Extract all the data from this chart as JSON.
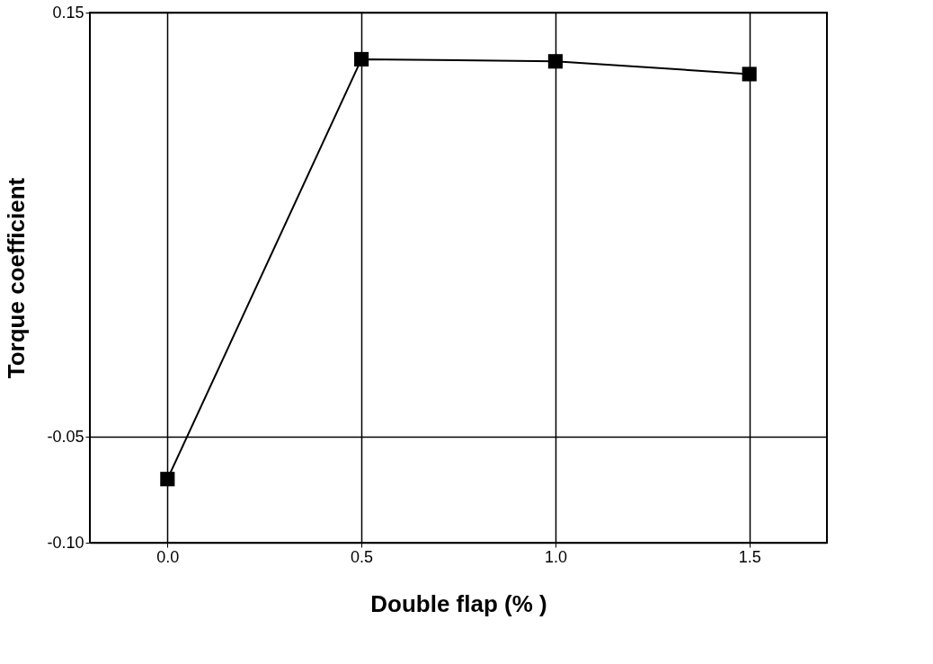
{
  "chart_data": {
    "type": "line",
    "xlabel": "Double flap (% )",
    "ylabel": "Torque coefficient",
    "x": [
      0.0,
      0.5,
      1.0,
      1.5
    ],
    "series": [
      {
        "color": "#000000",
        "values": [
          -0.07,
          0.128,
          0.127,
          0.121
        ]
      }
    ],
    "xlim": [
      -0.2,
      1.7
    ],
    "xticks": [
      {
        "value": 0,
        "label": "0.0"
      },
      0.5,
      {
        "value": 1,
        "label": "1.0"
      },
      1.5
    ],
    "ylim": [
      -0.1,
      0.15
    ],
    "yticks": [
      {
        "value": -0.1,
        "label": "-0.10"
      },
      -0.05,
      0.15
    ],
    "grid": true,
    "marker": "square",
    "line_style": "solid"
  }
}
